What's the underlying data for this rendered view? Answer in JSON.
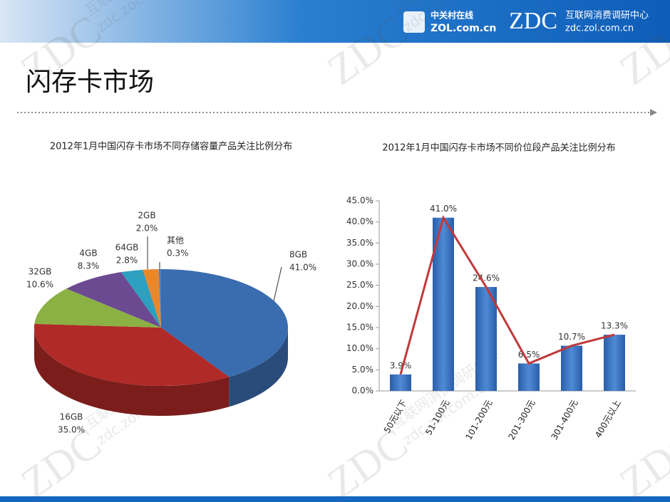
{
  "header": {
    "site_name": "中关村在线",
    "site_url": "ZOL.com.cn",
    "logo": "ZDC",
    "center_name": "互联网消费调研中心",
    "center_url": "zdc.zol.com.cn"
  },
  "watermark": {
    "logo": "ZDC",
    "name": "互联网消费调研中心",
    "url": "zdc.zol.com.cn"
  },
  "page_title": "闪存卡市场",
  "chart_data": [
    {
      "type": "pie",
      "title": "2012年1月中国闪存卡市场不同存储容量产品关注比例分布",
      "categories": [
        "8GB",
        "16GB",
        "32GB",
        "4GB",
        "64GB",
        "2GB",
        "其他"
      ],
      "values": [
        41.0,
        35.0,
        10.6,
        8.3,
        2.8,
        2.0,
        0.3
      ],
      "value_labels": [
        "41.0%",
        "35.0%",
        "10.6%",
        "8.3%",
        "2.8%",
        "2.0%",
        "0.3%"
      ],
      "colors": [
        "#3a6cb0",
        "#b02a27",
        "#8bb043",
        "#6b4a92",
        "#2d9fbf",
        "#e8882b",
        "#4f7fc2"
      ]
    },
    {
      "type": "bar_line",
      "title": "2012年1月中国闪存卡市场不同价位段产品关注比例分布",
      "categories": [
        "50元以下",
        "51-100元",
        "101-200元",
        "201-300元",
        "301-400元",
        "400元以上"
      ],
      "values": [
        3.9,
        41.0,
        24.6,
        6.5,
        10.7,
        13.3
      ],
      "value_labels": [
        "3.9%",
        "41.0%",
        "24.6%",
        "6.5%",
        "10.7%",
        "13.3%"
      ],
      "color": "#3a70c0",
      "line_color": "#c0393b",
      "ylim": [
        0,
        45
      ],
      "yticks": [
        {
          "value": 0,
          "label": "0.0%"
        },
        {
          "value": 5,
          "label": "5.0%"
        },
        {
          "value": 10,
          "label": "10.0%"
        },
        {
          "value": 15,
          "label": "15.0%"
        },
        {
          "value": 20,
          "label": "20.0%"
        },
        {
          "value": 25,
          "label": "25.0%"
        },
        {
          "value": 30,
          "label": "30.0%"
        },
        {
          "value": 35,
          "label": "35.0%"
        },
        {
          "value": 40,
          "label": "40.0%"
        },
        {
          "value": 45,
          "label": "45.0%"
        }
      ]
    }
  ]
}
